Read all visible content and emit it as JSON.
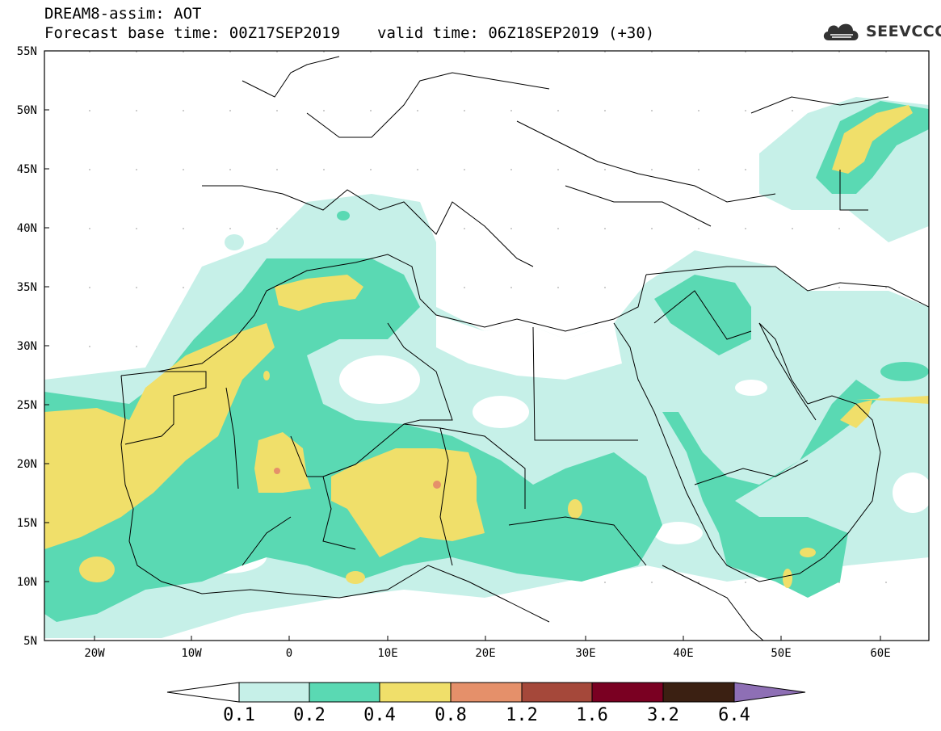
{
  "header": {
    "title": "DREAM8-assim: AOT",
    "base_time": "Forecast base time: 00Z17SEP2019",
    "valid_time": "valid time: 06Z18SEP2019 (+30)"
  },
  "logo": {
    "text": "SEEVCCC",
    "icon": "cloud-icon"
  },
  "map": {
    "lat_labels": [
      "55N",
      "50N",
      "45N",
      "40N",
      "35N",
      "30N",
      "25N",
      "20N",
      "15N",
      "10N",
      "5N"
    ],
    "lon_labels": [
      "20W",
      "10W",
      "0",
      "10E",
      "20E",
      "30E",
      "40E",
      "50E",
      "60E"
    ]
  },
  "colorbar": {
    "labels": [
      "0.1",
      "0.2",
      "0.4",
      "0.8",
      "1.2",
      "1.6",
      "3.2",
      "6.4"
    ],
    "colors": [
      "#c6f0e8",
      "#5ad9b3",
      "#f0df6a",
      "#e5906a",
      "#a5483a",
      "#7a0022",
      "#3b2012",
      "#8e6fb5"
    ]
  },
  "colors": {
    "c1": "#c6f0e8",
    "c2": "#5ad9b3",
    "c3": "#f0df6a",
    "c4": "#e5906a",
    "border": "#000000"
  }
}
